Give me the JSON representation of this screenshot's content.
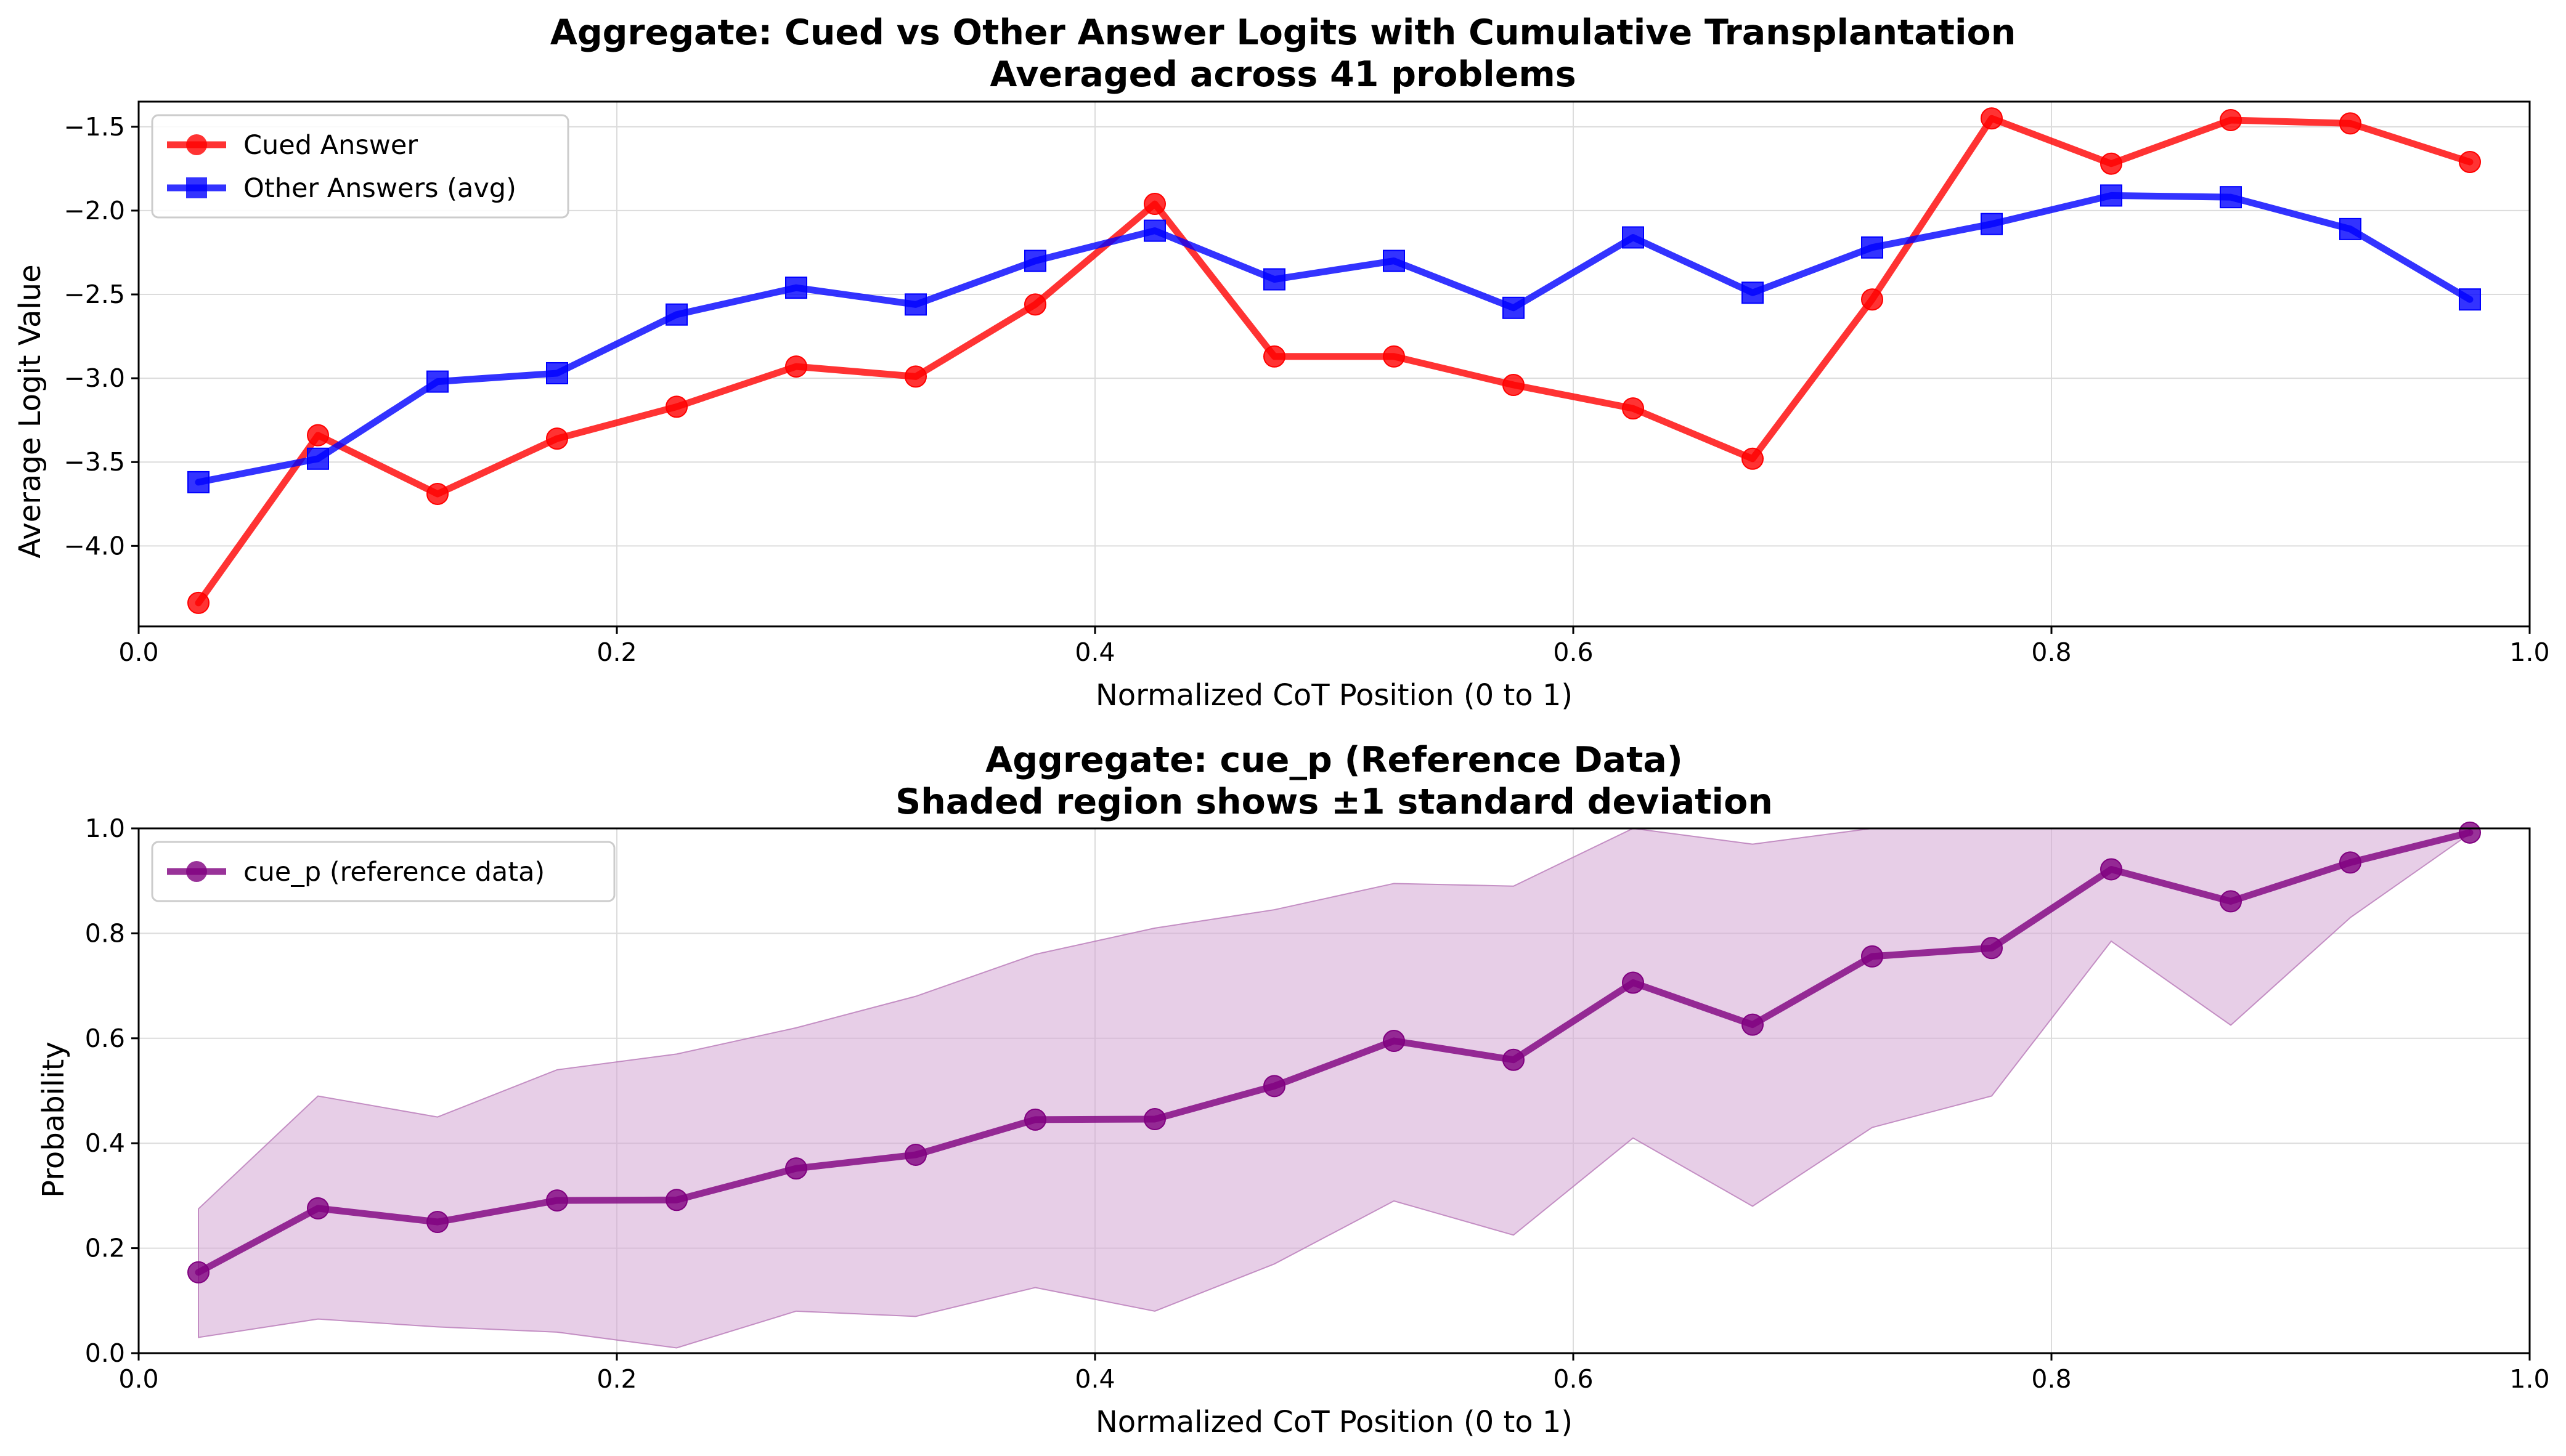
{
  "chart_data": [
    {
      "type": "line",
      "title": "Aggregate: Cued vs Other Answer Logits with Cumulative Transplantation",
      "subtitle": "Averaged across 41 problems",
      "xlabel": "Normalized CoT Position (0 to 1)",
      "ylabel": "Average Logit Value",
      "xlim": [
        0,
        1
      ],
      "ylim": [
        -4.48,
        -1.35
      ],
      "xticks": [
        0.0,
        0.2,
        0.4,
        0.6,
        0.8,
        1.0
      ],
      "xtick_labels": [
        "0.0",
        "0.2",
        "0.4",
        "0.6",
        "0.8",
        "1.0"
      ],
      "yticks": [
        -4.0,
        -3.5,
        -3.0,
        -2.5,
        -2.0,
        -1.5
      ],
      "ytick_labels": [
        "−4.0",
        "−3.5",
        "−3.0",
        "−2.5",
        "−2.0",
        "−1.5"
      ],
      "grid": true,
      "legend": "top-left",
      "x": [
        0.025,
        0.075,
        0.125,
        0.175,
        0.225,
        0.275,
        0.325,
        0.375,
        0.425,
        0.475,
        0.525,
        0.575,
        0.625,
        0.675,
        0.725,
        0.775,
        0.825,
        0.875,
        0.925,
        0.975
      ],
      "series": [
        {
          "name": "Cued Answer",
          "color": "#ff0000",
          "marker": "circle",
          "values": [
            -4.34,
            -3.34,
            -3.69,
            -3.36,
            -3.17,
            -2.93,
            -2.99,
            -2.56,
            -1.96,
            -2.87,
            -2.87,
            -3.04,
            -3.18,
            -3.48,
            -2.53,
            -1.45,
            -1.72,
            -1.46,
            -1.48,
            -1.71
          ]
        },
        {
          "name": "Other Answers (avg)",
          "color": "#0000ff",
          "marker": "square",
          "values": [
            -3.62,
            -3.48,
            -3.02,
            -2.97,
            -2.62,
            -2.46,
            -2.56,
            -2.3,
            -2.12,
            -2.41,
            -2.3,
            -2.58,
            -2.16,
            -2.49,
            -2.22,
            -2.08,
            -1.91,
            -1.92,
            -2.11,
            -2.53
          ]
        }
      ]
    },
    {
      "type": "line",
      "title": "Aggregate: cue_p (Reference Data)",
      "subtitle": "Shaded region shows ±1 standard deviation",
      "xlabel": "Normalized CoT Position (0 to 1)",
      "ylabel": "Probability",
      "xlim": [
        0,
        1
      ],
      "ylim": [
        0,
        1
      ],
      "xticks": [
        0.0,
        0.2,
        0.4,
        0.6,
        0.8,
        1.0
      ],
      "xtick_labels": [
        "0.0",
        "0.2",
        "0.4",
        "0.6",
        "0.8",
        "1.0"
      ],
      "yticks": [
        0.0,
        0.2,
        0.4,
        0.6,
        0.8,
        1.0
      ],
      "ytick_labels": [
        "0.0",
        "0.2",
        "0.4",
        "0.6",
        "0.8",
        "1.0"
      ],
      "grid": true,
      "legend": "top-left",
      "x": [
        0.025,
        0.075,
        0.125,
        0.175,
        0.225,
        0.275,
        0.325,
        0.375,
        0.425,
        0.475,
        0.525,
        0.575,
        0.625,
        0.675,
        0.725,
        0.775,
        0.825,
        0.875,
        0.925,
        0.975
      ],
      "series": [
        {
          "name": "cue_p (reference data)",
          "color": "#800080",
          "band_color": "#d4a6d4",
          "marker": "circle",
          "values": [
            0.154,
            0.276,
            0.25,
            0.291,
            0.292,
            0.352,
            0.378,
            0.445,
            0.446,
            0.509,
            0.595,
            0.559,
            0.706,
            0.626,
            0.756,
            0.772,
            0.922,
            0.861,
            0.935,
            0.992
          ],
          "lower": [
            0.03,
            0.065,
            0.05,
            0.04,
            0.01,
            0.08,
            0.07,
            0.125,
            0.08,
            0.17,
            0.29,
            0.225,
            0.41,
            0.28,
            0.43,
            0.49,
            0.785,
            0.625,
            0.83,
            0.99
          ],
          "upper": [
            0.275,
            0.49,
            0.45,
            0.54,
            0.57,
            0.62,
            0.68,
            0.76,
            0.81,
            0.845,
            0.895,
            0.89,
            1.0,
            0.97,
            1.0,
            1.0,
            1.0,
            1.0,
            1.0,
            1.0
          ]
        }
      ]
    }
  ]
}
